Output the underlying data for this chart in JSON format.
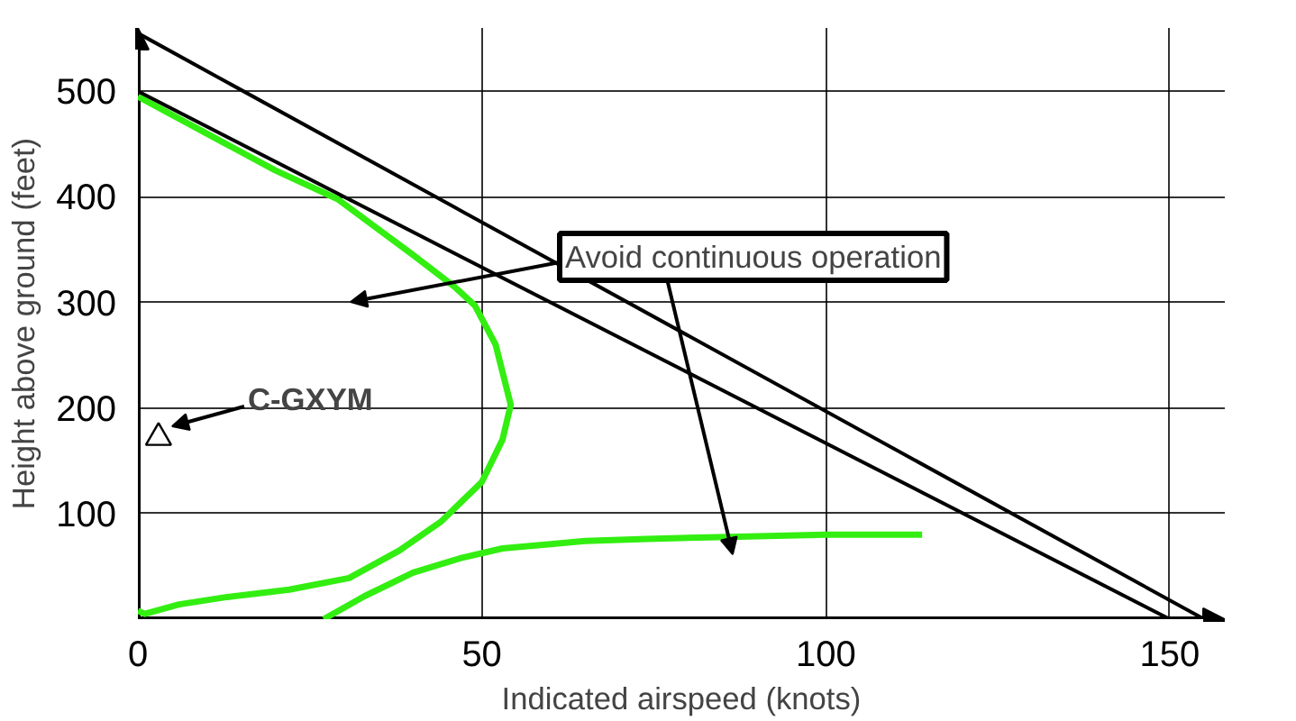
{
  "chart_data": {
    "type": "line",
    "xlabel": "Indicated airspeed (knots)",
    "ylabel": "Height above ground (feet)",
    "xlim": [
      0,
      158
    ],
    "ylim": [
      0,
      560
    ],
    "xticks": [
      0,
      50,
      100,
      150
    ],
    "yticks": [
      100,
      200,
      300,
      400,
      500
    ],
    "grid": true,
    "marker": "none",
    "line_style": "solid",
    "series": [
      {
        "color": "#33ee11",
        "x": [
          0,
          10,
          20,
          29,
          40,
          46,
          49,
          52,
          54.2,
          53,
          50,
          44,
          38,
          30.7,
          22,
          13,
          6,
          1,
          0
        ],
        "values": [
          495,
          460,
          425,
          398,
          345,
          315,
          297,
          260,
          203,
          170,
          130,
          92,
          65,
          39,
          28,
          21,
          14,
          5,
          8
        ]
      },
      {
        "color": "#33ee11",
        "x": [
          27,
          33,
          40,
          47,
          53,
          60,
          65,
          74,
          86,
          100,
          114
        ],
        "values": [
          0,
          22,
          44,
          58,
          67,
          71,
          74,
          76,
          78,
          80,
          80
        ]
      },
      {
        "color": "#000000",
        "x": [
          0,
          155
        ],
        "values": [
          555,
          0
        ]
      },
      {
        "color": "#000000",
        "x": [
          0,
          150
        ],
        "values": [
          500,
          0
        ]
      },
      {
        "type": "scatter",
        "marker": "triangle",
        "color": "#000000",
        "x": [
          3
        ],
        "values": [
          172
        ]
      }
    ],
    "annotations": [
      "C-GXYM",
      "Avoid continuous operation"
    ]
  }
}
